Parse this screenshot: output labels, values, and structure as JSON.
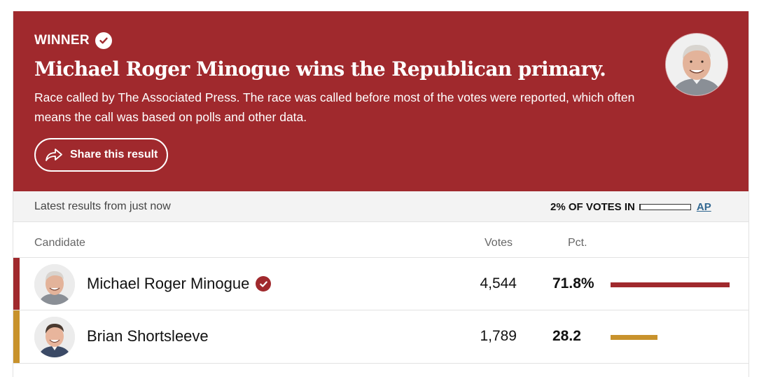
{
  "banner": {
    "winner_label": "WINNER",
    "headline": "Michael Roger Minogue wins the Republican primary.",
    "subtext": "Race called by The Associated Press. The race was called before most of the votes were reported, which often means the call was based on polls and other data.",
    "share_label": "Share this result",
    "background_color": "#a0292d"
  },
  "status": {
    "updated": "Latest results from just now",
    "votes_in": "2% OF VOTES IN",
    "reporting_fraction": 0.02,
    "source": "AP"
  },
  "table": {
    "headers": {
      "candidate": "Candidate",
      "votes": "Votes",
      "pct": "Pct."
    },
    "rows": [
      {
        "name": "Michael Roger Minogue",
        "votes": "4,544",
        "pct": "71.8%",
        "pct_value": 71.8,
        "winner": true,
        "color": "#a0292d"
      },
      {
        "name": "Brian Shortsleeve",
        "votes": "1,789",
        "pct": "28.2",
        "pct_value": 28.2,
        "winner": false,
        "color": "#c8922c"
      }
    ]
  },
  "icons": {
    "winner_check": "checkmark-circle-icon",
    "share": "share-arrow-icon"
  }
}
